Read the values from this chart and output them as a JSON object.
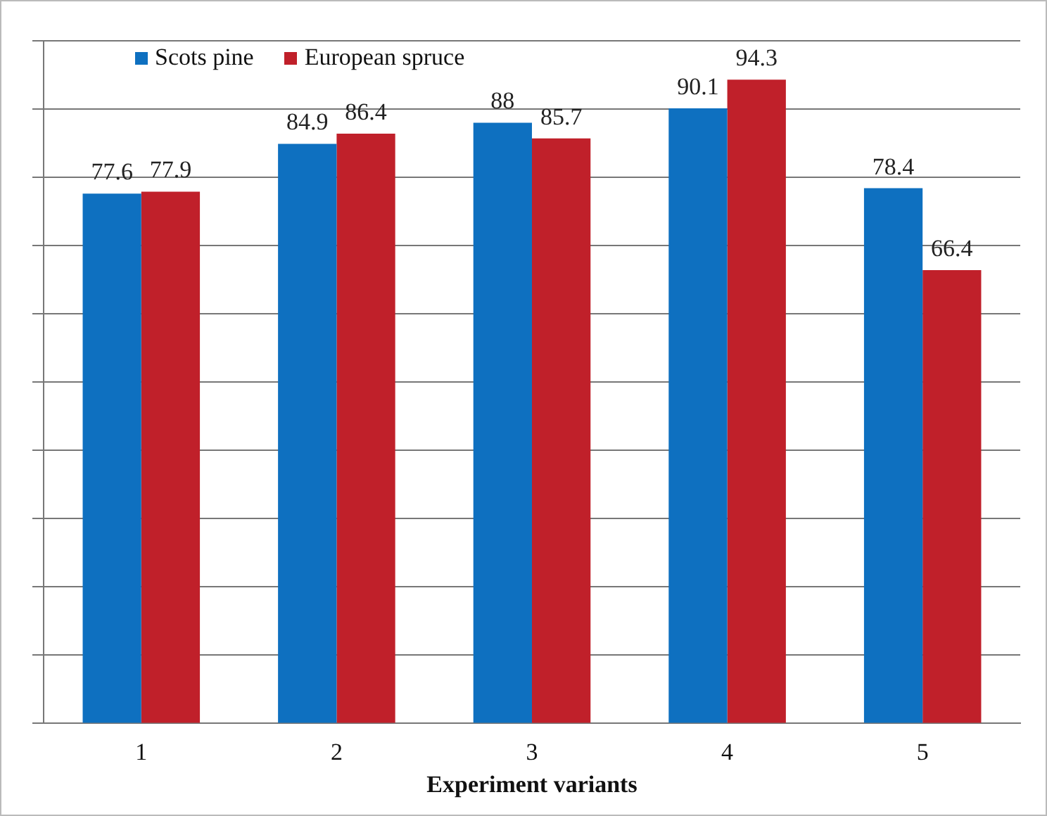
{
  "chart_data": {
    "type": "bar",
    "xlabel": "Experiment variants",
    "categories": [
      "1",
      "2",
      "3",
      "4",
      "5"
    ],
    "series": [
      {
        "name": "Scots pine",
        "color": "#0e70c0",
        "values": [
          77.6,
          84.9,
          88,
          90.1,
          78.4
        ]
      },
      {
        "name": "European spruce",
        "color": "#c0202a",
        "values": [
          77.9,
          86.4,
          85.7,
          94.3,
          66.4
        ]
      }
    ],
    "ylim": [
      0,
      100
    ],
    "yticks": [
      {
        "value": 0,
        "label": null
      },
      {
        "value": 10,
        "label": null
      },
      {
        "value": 20,
        "label": null
      },
      {
        "value": 30,
        "label": null
      },
      {
        "value": 40,
        "label": null
      },
      {
        "value": 50,
        "label": null
      },
      {
        "value": 60,
        "label": null
      },
      {
        "value": 70,
        "label": null
      },
      {
        "value": 80,
        "label": null
      },
      {
        "value": 90,
        "label": null
      },
      {
        "value": 100,
        "label": null
      }
    ],
    "tick_labels": "x",
    "grid": "y",
    "legend": "top left",
    "data_labels": true
  }
}
